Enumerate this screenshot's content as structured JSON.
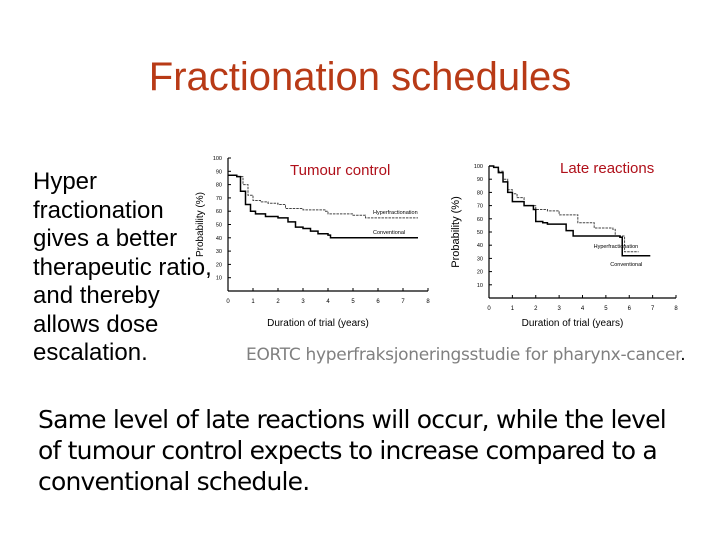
{
  "slide": {
    "title": "Fractionation schedules",
    "left_text": "Hyper fractionation gives a better therapeutic ratio, and thereby allows dose escalation.",
    "caption": "EORTC hyperfraksjoneringsstudie for pharynx-cancer",
    "caption_end": ".",
    "bottom_text": "Same level of late reactions will occur, while the level of tumour control expects to increase compared to a conventional schedule.",
    "colors": {
      "title": "#b83a16",
      "chart_title": "#b0101a",
      "caption": "#808080"
    }
  },
  "chart_data": [
    {
      "type": "line",
      "title": "Tumour control",
      "xlabel": "Duration of trial (years)",
      "ylabel": "Probability (%)",
      "x_ticks": [
        "0",
        "1",
        "2",
        "3",
        "4",
        "5",
        "6",
        "7",
        "8"
      ],
      "y_ticks": [
        "10",
        "20",
        "30",
        "40",
        "50",
        "60",
        "70",
        "80",
        "90",
        "100"
      ],
      "xlim": [
        0,
        8
      ],
      "ylim": [
        0,
        100
      ],
      "grid": false,
      "legend_position": "inline-right",
      "series": [
        {
          "name": "Hyperfractionation",
          "style": "dashed",
          "x": [
            0,
            0.4,
            0.6,
            0.8,
            1.0,
            1.3,
            1.6,
            2.0,
            2.3,
            2.6,
            3.0,
            3.5,
            3.9,
            4.0,
            4.5,
            5.0,
            5.4,
            5.5,
            7.6
          ],
          "y": [
            87,
            86,
            80,
            72,
            68,
            67,
            66,
            65,
            62,
            62,
            61,
            61,
            60,
            58,
            58,
            57,
            57,
            55,
            55
          ]
        },
        {
          "name": "Conventional",
          "style": "solid",
          "x": [
            0,
            0.35,
            0.5,
            0.7,
            0.9,
            1.1,
            1.5,
            2.0,
            2.4,
            2.7,
            3.0,
            3.3,
            3.6,
            4.0,
            4.1,
            7.6
          ],
          "y": [
            87,
            86,
            75,
            65,
            60,
            58,
            56,
            55,
            52,
            48,
            47,
            45,
            43,
            42,
            40,
            40
          ]
        }
      ]
    },
    {
      "type": "line",
      "title": "Late reactions",
      "xlabel": "Duration of trial (years)",
      "ylabel": "Probability (%)",
      "x_ticks": [
        "0",
        "1",
        "2",
        "3",
        "4",
        "5",
        "6",
        "7",
        "8"
      ],
      "y_ticks": [
        "10",
        "20",
        "30",
        "40",
        "50",
        "60",
        "70",
        "80",
        "90",
        "100"
      ],
      "xlim": [
        0,
        8
      ],
      "ylim": [
        0,
        100
      ],
      "grid": false,
      "legend_position": "inline-right",
      "series": [
        {
          "name": "Hyperfractionation",
          "style": "dashed",
          "x": [
            0,
            0.2,
            0.4,
            0.6,
            0.8,
            1.0,
            1.2,
            1.5,
            2.0,
            2.5,
            3.0,
            3.6,
            3.8,
            4.5,
            5.3,
            5.4,
            5.7,
            5.8,
            6.4
          ],
          "y": [
            100,
            99,
            96,
            90,
            82,
            79,
            76,
            70,
            67,
            66,
            63,
            63,
            57,
            53,
            52,
            47,
            47,
            35,
            35
          ]
        },
        {
          "name": "Conventional",
          "style": "solid",
          "x": [
            0,
            0.2,
            0.4,
            0.6,
            0.8,
            1.0,
            1.5,
            1.9,
            2.0,
            2.3,
            2.5,
            3.1,
            3.3,
            3.6,
            3.7,
            5.0,
            5.6,
            5.7,
            6.9
          ],
          "y": [
            100,
            99,
            95,
            88,
            80,
            73,
            70,
            67,
            58,
            57,
            56,
            56,
            51,
            47,
            47,
            47,
            46,
            32,
            32
          ]
        }
      ]
    }
  ]
}
